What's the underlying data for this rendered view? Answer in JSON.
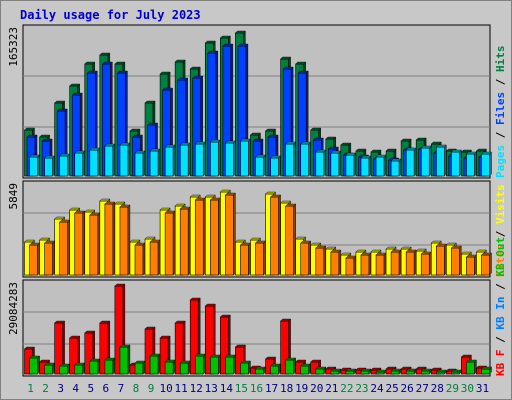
{
  "chart_data": [
    {
      "type": "bar",
      "title": "Daily usage for July 2023",
      "categories": [
        "1",
        "2",
        "3",
        "4",
        "5",
        "6",
        "7",
        "8",
        "9",
        "10",
        "11",
        "12",
        "13",
        "14",
        "15",
        "16",
        "17",
        "18",
        "19",
        "20",
        "21",
        "22",
        "23",
        "24",
        "25",
        "26",
        "27",
        "28",
        "29",
        "30",
        "31"
      ],
      "weekend_days": [
        "1",
        "2",
        "8",
        "9",
        "15",
        "16",
        "22",
        "23",
        "29",
        "30"
      ],
      "ylabel_max": "165323",
      "ymax": 165323,
      "series": [
        {
          "name": "Hits",
          "color": "#008040",
          "values": [
            52000,
            45000,
            83000,
            103000,
            128000,
            138000,
            128000,
            51000,
            83000,
            116000,
            130000,
            122000,
            152000,
            157000,
            163000,
            47000,
            51000,
            133000,
            128000,
            52000,
            42000,
            35000,
            28000,
            27000,
            29000,
            40000,
            41000,
            36000,
            28000,
            27000,
            29000
          ]
        },
        {
          "name": "Files",
          "color": "#0040ff",
          "values": [
            45000,
            40000,
            74000,
            92000,
            118000,
            128000,
            118000,
            45000,
            58000,
            98000,
            110000,
            112000,
            140000,
            148000,
            148000,
            40000,
            45000,
            122000,
            118000,
            41000,
            31000,
            24000,
            22000,
            19000,
            18000,
            30000,
            31000,
            26000,
            23000,
            21000,
            22000
          ]
        },
        {
          "name": "Pages",
          "color": "#00e0ff",
          "values": [
            22000,
            21000,
            23000,
            26000,
            30000,
            34000,
            35000,
            26000,
            28000,
            33000,
            35000,
            36000,
            39000,
            38000,
            40000,
            22000,
            21000,
            36000,
            37000,
            27000,
            26000,
            24000,
            21000,
            22000,
            17000,
            30000,
            32000,
            33000,
            27000,
            25000,
            25000
          ]
        }
      ]
    },
    {
      "type": "bar",
      "ylabel_max": "5849",
      "ymax": 5849,
      "series": [
        {
          "name": "Visits",
          "color": "#ffff00",
          "values": [
            2200,
            2300,
            3700,
            4300,
            4200,
            4900,
            4700,
            2200,
            2400,
            4300,
            4600,
            5200,
            5200,
            5500,
            2200,
            2300,
            5400,
            4800,
            2400,
            2000,
            1700,
            1300,
            1500,
            1500,
            1700,
            1700,
            1600,
            2100,
            2000,
            1400,
            1500
          ]
        },
        {
          "name": "Sites",
          "color": "#ff8000",
          "values": [
            2000,
            2100,
            3500,
            4100,
            4000,
            4700,
            4500,
            2000,
            2200,
            4100,
            4400,
            5000,
            5000,
            5300,
            2000,
            2100,
            5200,
            4600,
            2100,
            1800,
            1500,
            1100,
            1300,
            1300,
            1500,
            1500,
            1400,
            1900,
            1800,
            1200,
            1300
          ]
        }
      ]
    },
    {
      "type": "bar",
      "ylabel_max": "29084283",
      "ymax": 29084283,
      "series": [
        {
          "name": "KBytes F",
          "color": "#ff0000",
          "values": [
            8200000,
            4000000,
            17000000,
            12000000,
            13500000,
            17000000,
            29084283,
            3000000,
            15000000,
            12000000,
            17000000,
            24500000,
            22500000,
            19000000,
            9000000,
            1900000,
            5000000,
            17500000,
            4000000,
            4000000,
            1600000,
            1200000,
            1200000,
            1300000,
            1800000,
            1800000,
            1500000,
            1300000,
            1100000,
            5500000,
            2000000
          ]
        },
        {
          "name": "KBytes In",
          "color": "#0080ff",
          "values": [
            0,
            0,
            0,
            0,
            0,
            0,
            0,
            0,
            0,
            0,
            0,
            0,
            0,
            0,
            0,
            0,
            0,
            0,
            0,
            0,
            0,
            0,
            0,
            0,
            0,
            0,
            0,
            0,
            0,
            0,
            0
          ]
        },
        {
          "name": "KBytes Out",
          "color": "#00c000",
          "values": [
            5200000,
            3000000,
            2700000,
            3000000,
            4300000,
            4500000,
            9000000,
            3500000,
            6000000,
            4000000,
            3800000,
            5800000,
            5600000,
            5500000,
            3500000,
            1600000,
            2800000,
            4700000,
            2500000,
            1500000,
            1000000,
            900000,
            900000,
            800000,
            900000,
            1000000,
            900000,
            800000,
            700000,
            4000000,
            1600000
          ]
        }
      ]
    }
  ],
  "legend": {
    "panel1": [
      {
        "text": "Pages",
        "color": "#00e0ff"
      },
      {
        "text": " / ",
        "color": "#000000"
      },
      {
        "text": "Files",
        "color": "#0040ff"
      },
      {
        "text": " / ",
        "color": "#000000"
      },
      {
        "text": "Hits",
        "color": "#008040"
      }
    ],
    "panel2": [
      {
        "text": "Sites",
        "color": "#ff8000"
      },
      {
        "text": " / ",
        "color": "#000000"
      },
      {
        "text": "Visits",
        "color": "#ffff00"
      }
    ],
    "panel3": [
      {
        "text": "KB F",
        "color": "#ff0000"
      },
      {
        "text": " / ",
        "color": "#000000"
      },
      {
        "text": "KB In",
        "color": "#0080ff"
      },
      {
        "text": " / ",
        "color": "#000000"
      },
      {
        "text": "KB Out",
        "color": "#00c000"
      }
    ]
  },
  "colors": {
    "weekday_label": "#000080",
    "weekend_label": "#008040",
    "title": "#0000cc",
    "plot_bg": "#c0c0c0",
    "gridline": "#808080"
  }
}
